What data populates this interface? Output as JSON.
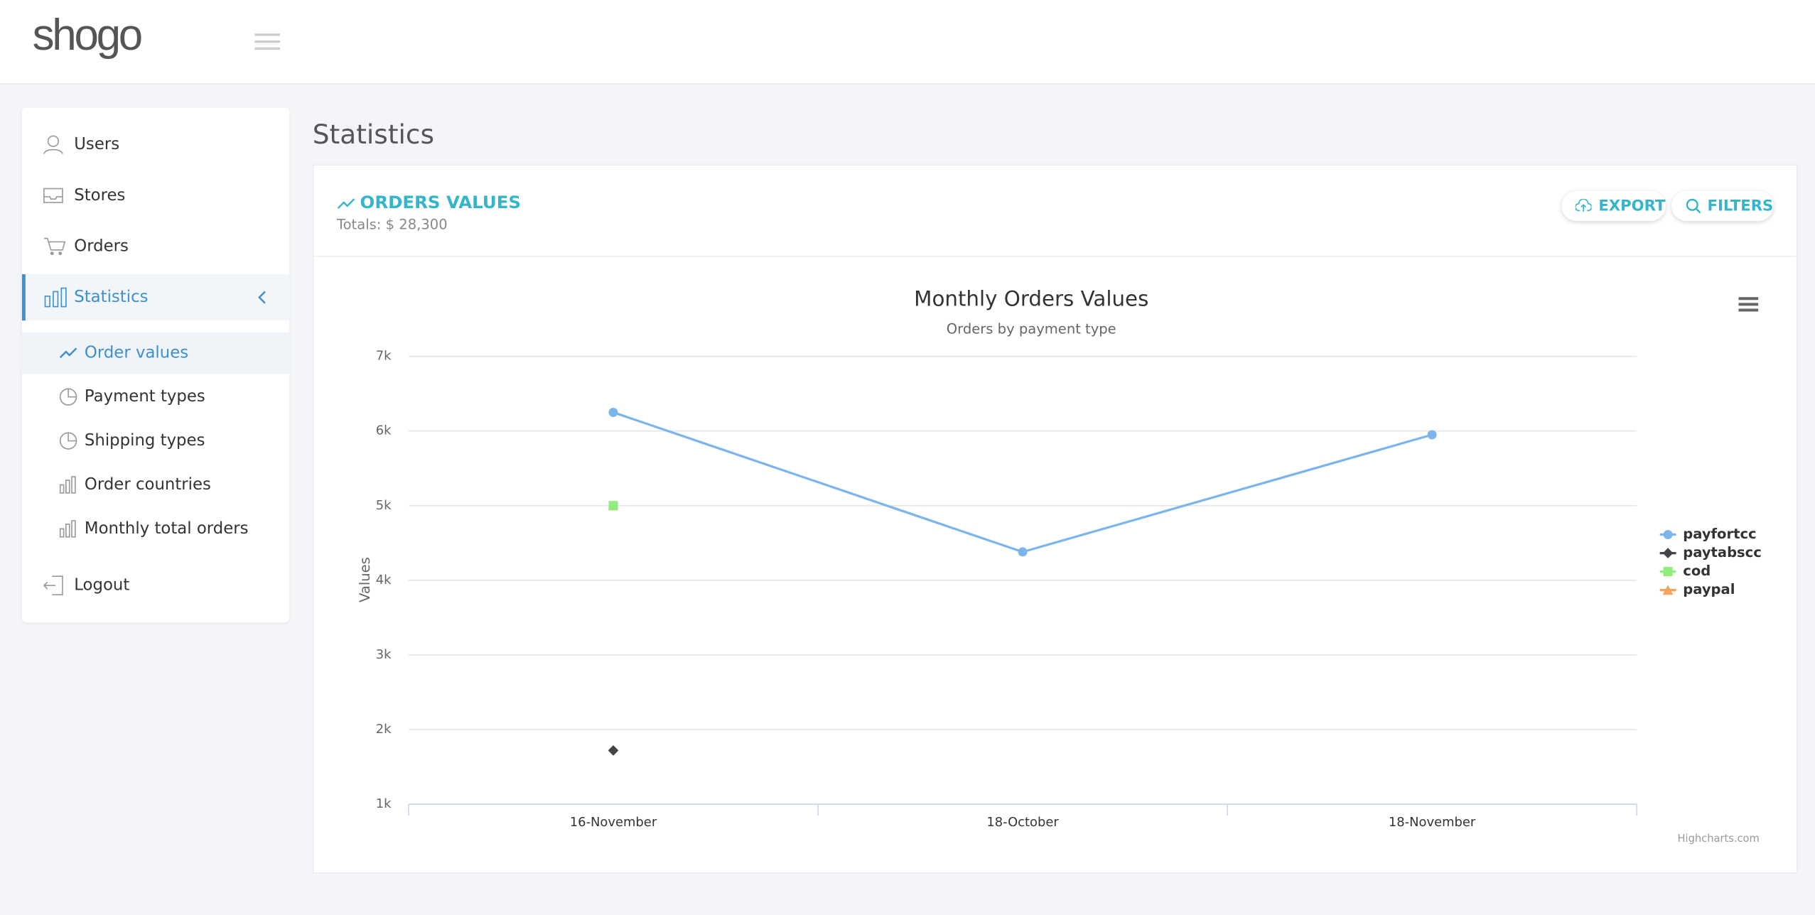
{
  "header": {
    "brand": "shogo"
  },
  "sidebar": {
    "items": [
      "Users",
      "Stores",
      "Orders",
      "Statistics"
    ],
    "submenu": [
      "Order values",
      "Payment types",
      "Shipping types",
      "Order countries",
      "Monthly total orders"
    ],
    "logout": "Logout"
  },
  "page": {
    "title": "Statistics",
    "card_title": "ORDERS VALUES",
    "totals": "Totals: $ 28,300",
    "buttons": [
      "EXPORT",
      "FILTERS"
    ]
  },
  "chart_data": {
    "type": "line",
    "title": "Monthly Orders Values",
    "subtitle": "Orders by payment type",
    "y_label": "Values",
    "credit": "Highcharts.com",
    "categories": [
      "16-November",
      "18-October",
      "18-November"
    ],
    "ylim": [
      1000,
      7000
    ],
    "yticks": [
      {
        "value": 1000,
        "label": "1k"
      },
      {
        "value": 2000,
        "label": "2k"
      },
      {
        "value": 3000,
        "label": "3k"
      },
      {
        "value": 4000,
        "label": "4k"
      },
      {
        "value": 5000,
        "label": "5k"
      },
      {
        "value": 6000,
        "label": "6k"
      },
      {
        "value": 7000,
        "label": "7k"
      }
    ],
    "grid": true,
    "legend": "right",
    "series": [
      {
        "name": "payfortcc",
        "color": "#7cb5ec",
        "symbol": "circle",
        "values": [
          6250,
          4380,
          5950
        ]
      },
      {
        "name": "paytabscc",
        "color": "#434348",
        "symbol": "diamond",
        "values": [
          1720,
          null,
          null
        ]
      },
      {
        "name": "cod",
        "color": "#90ed7d",
        "symbol": "square",
        "values": [
          5000,
          null,
          null
        ]
      },
      {
        "name": "paypal",
        "color": "#f7a35c",
        "symbol": "triangle",
        "values": [
          5000,
          null,
          null
        ]
      }
    ]
  }
}
